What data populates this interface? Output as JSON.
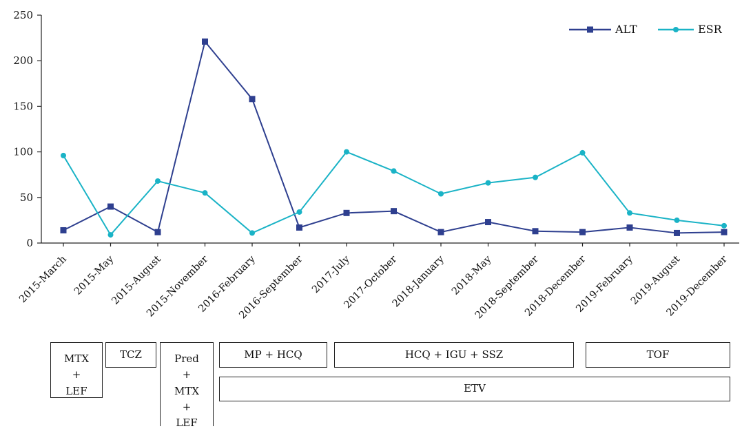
{
  "chart_data": {
    "type": "line",
    "categories": [
      "2015-March",
      "2015-May",
      "2015-August",
      "2015-November",
      "2016-February",
      "2016-September",
      "2017-July",
      "2017-October",
      "2018-January",
      "2018-May",
      "2018-September",
      "2018-December",
      "2019-February",
      "2019-August",
      "2019-December"
    ],
    "series": [
      {
        "name": "ALT",
        "color": "#2e3f8f",
        "marker": "square",
        "values": [
          14,
          40,
          12,
          221,
          158,
          17,
          33,
          35,
          12,
          23,
          13,
          12,
          17,
          11,
          12
        ]
      },
      {
        "name": "ESR",
        "color": "#1ab3c6",
        "marker": "circle",
        "values": [
          96,
          9,
          68,
          55,
          11,
          34,
          100,
          79,
          54,
          66,
          72,
          99,
          33,
          25,
          19
        ]
      }
    ],
    "yticks": [
      0,
      50,
      100,
      150,
      200,
      250
    ],
    "ylim": [
      0,
      250
    ],
    "grid": false,
    "legend": "top-right"
  },
  "treatments": [
    {
      "lines": [
        "MTX",
        "+",
        "LEF"
      ]
    },
    {
      "lines": [
        "TCZ"
      ]
    },
    {
      "lines": [
        "Pred",
        "+",
        "MTX",
        "+",
        "LEF"
      ]
    },
    {
      "lines": [
        "MP + HCQ"
      ]
    },
    {
      "lines": [
        "HCQ + IGU + SSZ"
      ]
    },
    {
      "lines": [
        "TOF"
      ]
    },
    {
      "lines": [
        "ETV"
      ]
    }
  ]
}
